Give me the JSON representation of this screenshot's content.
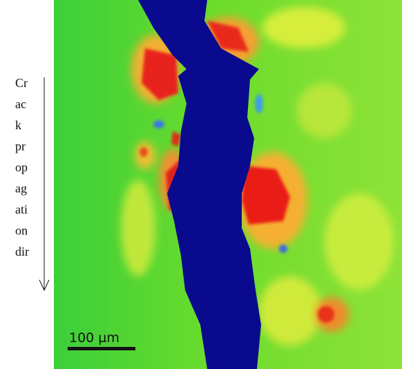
{
  "annotation": {
    "lines": [
      "Cr",
      "ac",
      "k",
      "pr",
      "op",
      "ag",
      "ati",
      "on",
      "dir"
    ]
  },
  "scale_bar": {
    "label": "100 µm"
  }
}
